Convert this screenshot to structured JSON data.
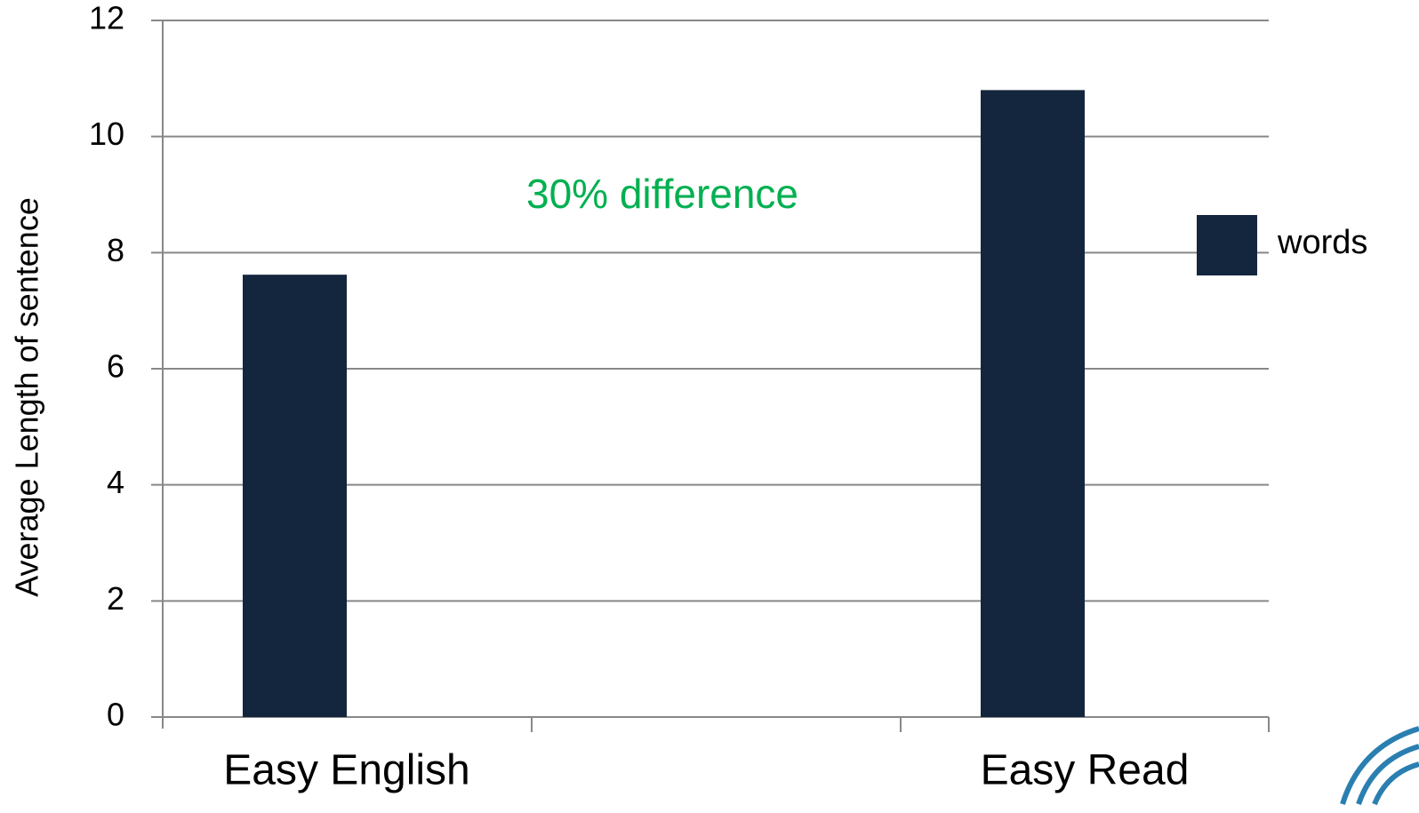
{
  "chart_data": {
    "type": "bar",
    "y_label": "Average Length of sentence",
    "annotation": "30% difference",
    "categories": [
      "Easy English",
      "Easy Read"
    ],
    "series": [
      {
        "name": "words",
        "color": "#14253e",
        "values": [
          7.62,
          10.8
        ]
      }
    ],
    "ylim": [
      0,
      12
    ],
    "yticks": [
      0,
      2,
      4,
      6,
      8,
      10,
      12
    ],
    "grid": true,
    "legend": "right"
  }
}
